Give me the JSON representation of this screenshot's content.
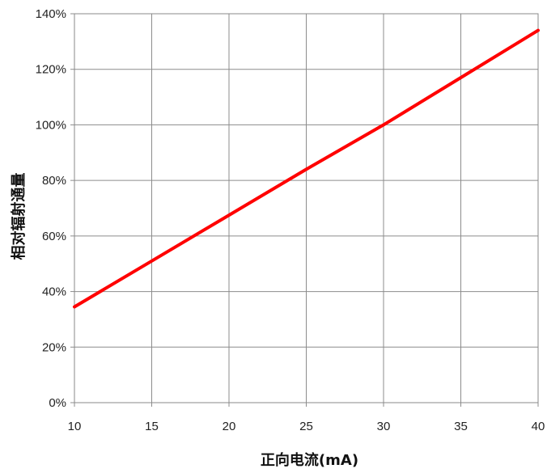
{
  "chart_data": {
    "type": "line",
    "title": "",
    "xlabel": "正向电流(mA)",
    "ylabel": "相对辐射通量",
    "xlim": [
      10,
      40
    ],
    "ylim": [
      0,
      140
    ],
    "x_ticks": [
      "10",
      "15",
      "20",
      "25",
      "30",
      "35",
      "40"
    ],
    "y_ticks": [
      "0%",
      "20%",
      "40%",
      "60%",
      "80%",
      "100%",
      "120%",
      "140%"
    ],
    "grid": true,
    "legend": "none",
    "series": [
      {
        "color": "#ff0000",
        "x": [
          10,
          15,
          20,
          25,
          30,
          35,
          40
        ],
        "y": [
          34.5,
          51,
          67.5,
          84,
          100,
          117,
          134
        ]
      }
    ]
  }
}
